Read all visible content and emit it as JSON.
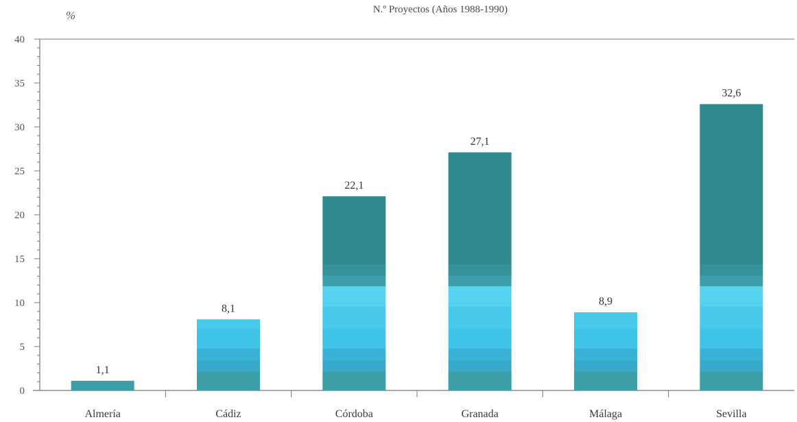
{
  "chart_data": {
    "type": "bar",
    "title": "N.º Proyectos (Años 1988-1990)",
    "unit_label": "%",
    "categories": [
      "Almería",
      "Cádiz",
      "Córdoba",
      "Granada",
      "Málaga",
      "Sevilla"
    ],
    "values": [
      1.1,
      8.1,
      22.1,
      27.1,
      8.9,
      32.6
    ],
    "data_labels": [
      "1,1",
      "8,1",
      "22,1",
      "27,1",
      "8,9",
      "32,6"
    ],
    "ylim": [
      0,
      40
    ],
    "yticks": [
      0,
      5,
      10,
      15,
      20,
      25,
      30,
      35,
      40
    ],
    "ytick_labels": [
      "0",
      "5",
      "10",
      "15",
      "20",
      "25",
      "30",
      "35",
      "40"
    ],
    "xlabel": "",
    "ylabel": "",
    "grid": false,
    "legend": "none",
    "colors": {
      "dark_teal": "#2e8a8e",
      "teal_mid": "#3c9ea6",
      "cyan_dark": "#39a9c9",
      "cyan": "#3fc3e6",
      "cyan_light": "#54d2ef",
      "axis": "#777777"
    }
  }
}
